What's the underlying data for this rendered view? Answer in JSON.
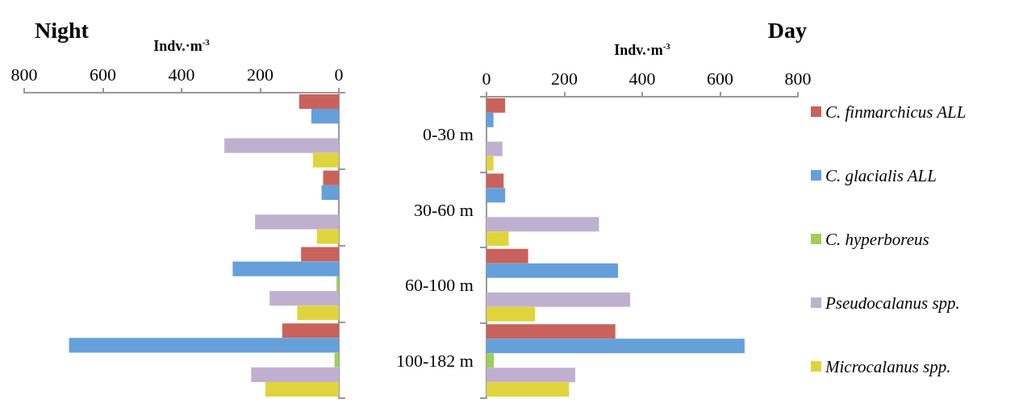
{
  "chart_data": [
    {
      "type": "bar",
      "title": "Night",
      "xlabel": "Indv.·m$^{-3}$",
      "orientation": "horizontal",
      "categories": [
        null,
        null,
        null,
        null
      ],
      "tick_labels": "x",
      "legend": false,
      "xlim": [
        800,
        0
      ],
      "xticks": [
        800,
        600,
        400,
        200,
        0
      ],
      "series": [
        {
          "color": "#c9625a",
          "values": [
            101,
            40,
            96,
            144
          ]
        },
        {
          "color": "#65a0db",
          "values": [
            70,
            44,
            270,
            686
          ]
        },
        {
          "color": "#9bd15a",
          "values": [
            0,
            0,
            6,
            11
          ]
        },
        {
          "color": "#c0b0d0",
          "values": [
            291,
            213,
            176,
            223
          ]
        },
        {
          "color": "#e0d43d",
          "values": [
            66,
            56,
            106,
            187
          ]
        }
      ]
    },
    {
      "type": "bar",
      "title": "Day",
      "xlabel": "Indv.·m$^{-3}$",
      "orientation": "horizontal",
      "categories": [
        "0-30 m",
        "30-60 m",
        "60-100 m",
        "100-182 m"
      ],
      "legend": "right",
      "xlim": [
        0,
        800
      ],
      "xticks": [
        0,
        200,
        400,
        600,
        800
      ],
      "series": [
        {
          "name": "C. finmarchicus ALL",
          "color": "#c9625a",
          "values": [
            48,
            44,
            107,
            331
          ]
        },
        {
          "name": "C. glacialis ALL",
          "color": "#65a0db",
          "values": [
            18,
            48,
            338,
            663
          ]
        },
        {
          "name": "C. hyperboreus",
          "color": "#9bd15a",
          "values": [
            0,
            0,
            0,
            19
          ]
        },
        {
          "name": "Pseudocalanus spp.",
          "color": "#c0b0d0",
          "values": [
            41,
            289,
            369,
            228
          ]
        },
        {
          "name": "Microcalanus spp.",
          "color": "#e0d43d",
          "values": [
            18,
            57,
            125,
            212
          ]
        }
      ]
    }
  ]
}
